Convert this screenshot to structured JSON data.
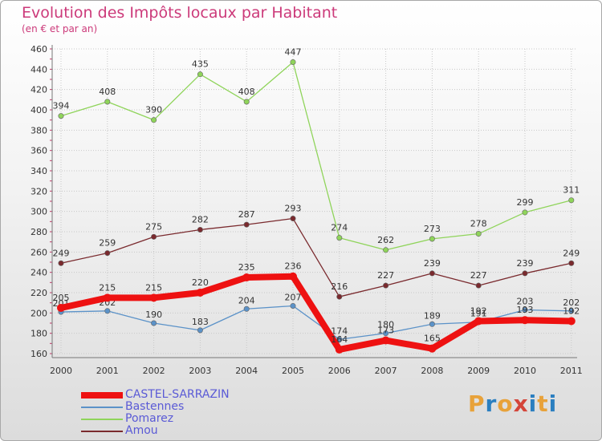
{
  "title": "Evolution des Impôts locaux par Habitant",
  "subtitle": "(en € et par an)",
  "logo": {
    "text": "Proxiti",
    "colors": [
      "#e8a23a",
      "#2b7fc0",
      "#e8a23a",
      "#d4453a",
      "#2b7fc0",
      "#e8a23a",
      "#2b7fc0"
    ]
  },
  "chart_data": {
    "type": "line",
    "title": "Evolution des Impôts locaux par Habitant",
    "subtitle": "(en € et par an)",
    "xlabel": "",
    "ylabel": "",
    "ylim": [
      160,
      460
    ],
    "yticks": [
      160,
      180,
      200,
      220,
      240,
      260,
      280,
      300,
      320,
      340,
      360,
      380,
      400,
      420,
      440,
      460
    ],
    "grid": true,
    "legend_position": "bottom-left",
    "categories": [
      "2000",
      "2001",
      "2002",
      "2003",
      "2004",
      "2005",
      "2006",
      "2007",
      "2008",
      "2009",
      "2010",
      "2011"
    ],
    "series": [
      {
        "name": "Pomarez",
        "color": "#8fd45a",
        "values": [
          394,
          408,
          390,
          435,
          408,
          447,
          274,
          262,
          273,
          278,
          299,
          311
        ]
      },
      {
        "name": "Amou",
        "color": "#7a2a2e",
        "values": [
          249,
          259,
          275,
          282,
          287,
          293,
          216,
          227,
          239,
          227,
          239,
          249
        ]
      },
      {
        "name": "Bastennes",
        "color": "#5b92c8",
        "values": [
          201,
          202,
          190,
          183,
          204,
          207,
          174,
          180,
          189,
          191,
          203,
          202
        ]
      },
      {
        "name": "CASTEL-SARRAZIN",
        "color": "#ee1111",
        "values": [
          205,
          215,
          215,
          220,
          235,
          236,
          164,
          173,
          165,
          192,
          193,
          192
        ]
      }
    ],
    "legend_order": [
      "CASTEL-SARRAZIN",
      "Bastennes",
      "Pomarez",
      "Amou"
    ]
  }
}
